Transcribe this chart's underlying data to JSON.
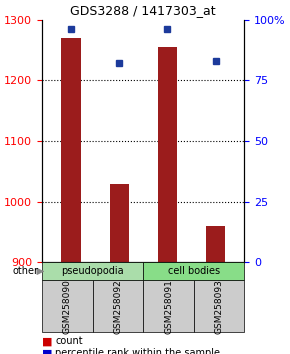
{
  "title": "GDS3288 / 1417303_at",
  "samples": [
    "GSM258090",
    "GSM258092",
    "GSM258091",
    "GSM258093"
  ],
  "groups": [
    "pseudopodia",
    "pseudopodia",
    "cell bodies",
    "cell bodies"
  ],
  "counts": [
    1270,
    1030,
    1255,
    960
  ],
  "percentiles": [
    96,
    82,
    96,
    83
  ],
  "ylim_left": [
    900,
    1300
  ],
  "ylim_right": [
    0,
    100
  ],
  "yticks_left": [
    900,
    1000,
    1100,
    1200,
    1300
  ],
  "yticks_right": [
    0,
    25,
    50,
    75,
    100
  ],
  "yticklabels_right": [
    "0",
    "25",
    "50",
    "75",
    "100%"
  ],
  "bar_color": "#9B1C1C",
  "dot_color": "#1C3A9B",
  "bar_width": 0.4,
  "group_color_pseudopodia": "#aaddaa",
  "group_color_cell_bodies": "#88dd88",
  "legend_count_color": "#cc0000",
  "legend_pct_color": "#0000cc",
  "other_label": "other",
  "background_color": "#ffffff",
  "gridline_y": [
    1000,
    1100,
    1200
  ]
}
